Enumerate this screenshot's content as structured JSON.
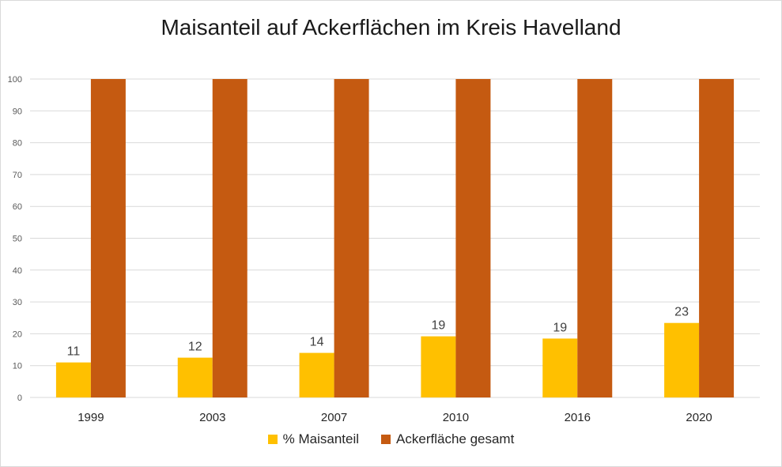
{
  "chart_data": {
    "type": "bar",
    "title": "Maisanteil auf Ackerflächen im Kreis Havelland",
    "categories": [
      "1999",
      "2003",
      "2007",
      "2010",
      "2016",
      "2020"
    ],
    "series": [
      {
        "name": "% Maisanteil",
        "values": [
          11,
          12.5,
          14,
          19.2,
          18.5,
          23.4
        ],
        "labels": [
          "11",
          "12",
          "14",
          "19",
          "19",
          "23"
        ],
        "color": "#FFC000"
      },
      {
        "name": "Ackerfläche gesamt",
        "values": [
          100,
          100,
          100,
          100,
          100,
          100
        ],
        "color": "#C55A11"
      }
    ],
    "ylim": [
      0,
      100
    ],
    "yticks": [
      0,
      10,
      20,
      30,
      40,
      50,
      60,
      70,
      80,
      90,
      100
    ],
    "grid": true,
    "legend_position": "bottom",
    "xlabel": "",
    "ylabel": ""
  }
}
